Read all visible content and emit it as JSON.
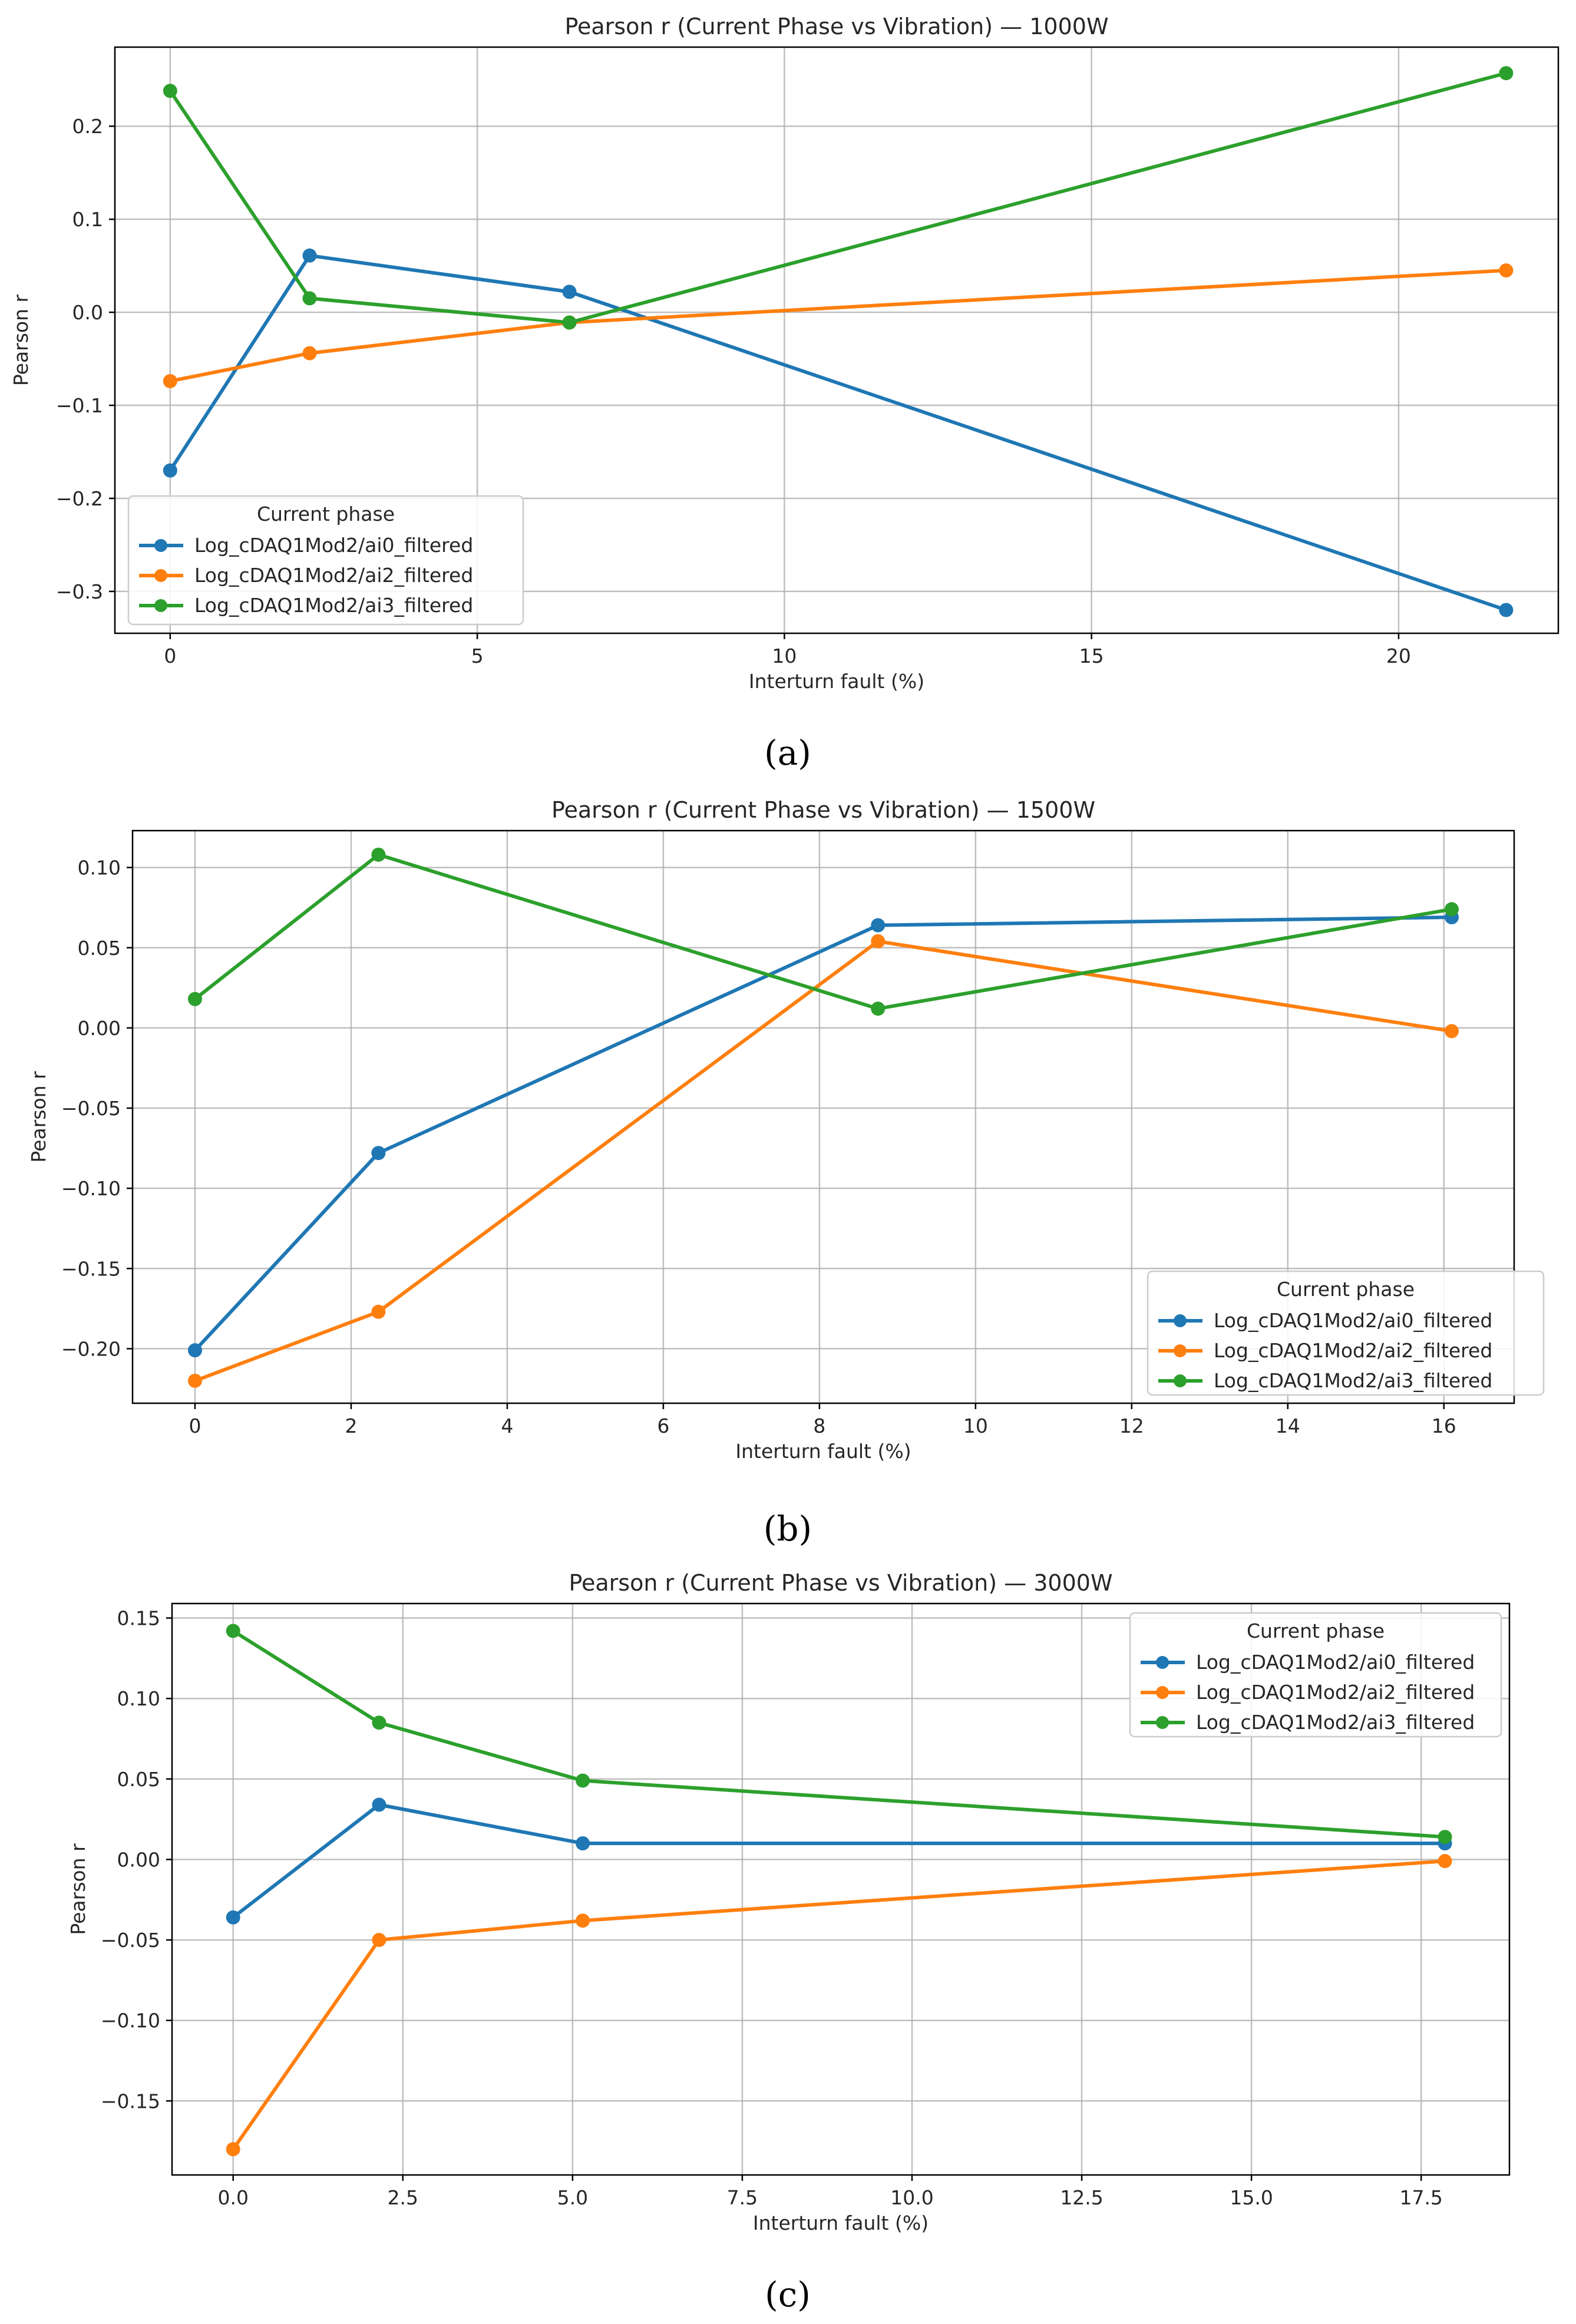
{
  "chart_data": [
    {
      "type": "line",
      "panel_label": "(a)",
      "title": "Pearson r (Current Phase vs Vibration) — 1000W",
      "xlabel": "Interturn fault (%)",
      "ylabel": "Pearson r",
      "xlim": [
        -0.9,
        22.6
      ],
      "ylim": [
        -0.345,
        0.285
      ],
      "xticks": [
        0,
        5,
        10,
        15,
        20
      ],
      "xtick_labels": [
        "0",
        "5",
        "10",
        "15",
        "20"
      ],
      "yticks": [
        -0.3,
        -0.2,
        -0.1,
        0.0,
        0.1,
        0.2
      ],
      "ytick_labels": [
        "−0.3",
        "−0.2",
        "−0.1",
        "0.0",
        "0.1",
        "0.2"
      ],
      "grid": true,
      "legend": {
        "title": "Current phase",
        "placement": "lower-left"
      },
      "x": [
        0,
        2.27,
        6.5,
        21.75
      ],
      "series": [
        {
          "name": "Log_cDAQ1Mod2/ai0_filtered",
          "color": "#1f77b4",
          "values": [
            -0.17,
            0.061,
            0.022,
            -0.32
          ]
        },
        {
          "name": "Log_cDAQ1Mod2/ai2_filtered",
          "color": "#ff7f0e",
          "values": [
            -0.074,
            -0.044,
            -0.011,
            0.045
          ]
        },
        {
          "name": "Log_cDAQ1Mod2/ai3_filtered",
          "color": "#2ca02c",
          "values": [
            0.238,
            0.015,
            -0.011,
            0.257
          ]
        }
      ]
    },
    {
      "type": "line",
      "panel_label": "(b)",
      "title": "Pearson r (Current Phase vs Vibration) — 1500W",
      "xlabel": "Interturn fault (%)",
      "ylabel": "Pearson r",
      "xlim": [
        -0.8,
        16.9
      ],
      "ylim": [
        -0.234,
        0.123
      ],
      "xticks": [
        0,
        2,
        4,
        6,
        8,
        10,
        12,
        14,
        16
      ],
      "xtick_labels": [
        "0",
        "2",
        "4",
        "6",
        "8",
        "10",
        "12",
        "14",
        "16"
      ],
      "yticks": [
        -0.2,
        -0.15,
        -0.1,
        -0.05,
        0.0,
        0.05,
        0.1
      ],
      "ytick_labels": [
        "−0.20",
        "−0.15",
        "−0.10",
        "−0.05",
        "0.00",
        "0.05",
        "0.10"
      ],
      "grid": true,
      "legend": {
        "title": "Current phase",
        "placement": "lower-right"
      },
      "x": [
        0,
        2.35,
        8.75,
        16.1
      ],
      "series": [
        {
          "name": "Log_cDAQ1Mod2/ai0_filtered",
          "color": "#1f77b4",
          "values": [
            -0.201,
            -0.078,
            0.064,
            0.069
          ]
        },
        {
          "name": "Log_cDAQ1Mod2/ai2_filtered",
          "color": "#ff7f0e",
          "values": [
            -0.22,
            -0.177,
            0.054,
            -0.002
          ]
        },
        {
          "name": "Log_cDAQ1Mod2/ai3_filtered",
          "color": "#2ca02c",
          "values": [
            0.018,
            0.108,
            0.012,
            0.074
          ]
        }
      ]
    },
    {
      "type": "line",
      "panel_label": "(c)",
      "title": "Pearson r (Current Phase vs Vibration) — 3000W",
      "xlabel": "Interturn fault (%)",
      "ylabel": "Pearson r",
      "xlim": [
        -0.9,
        18.8
      ],
      "ylim": [
        -0.196,
        0.159
      ],
      "xticks": [
        0,
        2.5,
        5,
        7.5,
        10,
        12.5,
        15,
        17.5
      ],
      "xtick_labels": [
        "0.0",
        "2.5",
        "5.0",
        "7.5",
        "10.0",
        "12.5",
        "15.0",
        "17.5"
      ],
      "yticks": [
        -0.15,
        -0.1,
        -0.05,
        0.0,
        0.05,
        0.1,
        0.15
      ],
      "ytick_labels": [
        "−0.15",
        "−0.10",
        "−0.05",
        "0.00",
        "0.05",
        "0.10",
        "0.15"
      ],
      "grid": true,
      "legend": {
        "title": "Current phase",
        "placement": "top-right"
      },
      "x": [
        0,
        2.15,
        5.15,
        17.85
      ],
      "series": [
        {
          "name": "Log_cDAQ1Mod2/ai0_filtered",
          "color": "#1f77b4",
          "values": [
            -0.036,
            0.034,
            0.01,
            0.01
          ]
        },
        {
          "name": "Log_cDAQ1Mod2/ai2_filtered",
          "color": "#ff7f0e",
          "values": [
            -0.18,
            -0.05,
            -0.038,
            -0.001
          ]
        },
        {
          "name": "Log_cDAQ1Mod2/ai3_filtered",
          "color": "#2ca02c",
          "values": [
            0.142,
            0.085,
            0.049,
            0.014
          ]
        }
      ]
    }
  ]
}
